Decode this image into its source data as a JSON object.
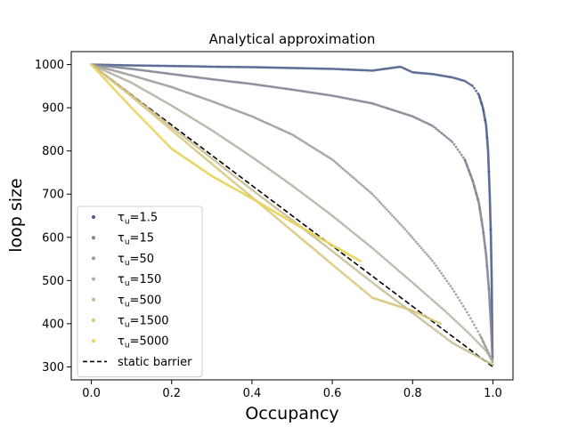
{
  "chart_data": {
    "type": "scatter",
    "title": "Analytical approximation",
    "xlabel": "Occupancy",
    "ylabel": "loop size",
    "xlim": [
      -0.05,
      1.05
    ],
    "ylim": [
      270,
      1030
    ],
    "xticks": [
      0.0,
      0.2,
      0.4,
      0.6,
      0.8,
      1.0
    ],
    "xtick_labels": [
      "0.0",
      "0.2",
      "0.4",
      "0.6",
      "0.8",
      "1.0"
    ],
    "yticks": [
      300,
      400,
      500,
      600,
      700,
      800,
      900,
      1000
    ],
    "ytick_labels": [
      "300",
      "400",
      "500",
      "600",
      "700",
      "800",
      "900",
      "1000"
    ],
    "grid": false,
    "legend_position": "lower-left",
    "series": [
      {
        "name": "τu=1.5",
        "label_base": "τ",
        "label_sub": "u",
        "label_rest": "=1.5",
        "color": "#4a5a8a",
        "points": [
          [
            0.0,
            1000
          ],
          [
            0.05,
            999
          ],
          [
            0.1,
            998
          ],
          [
            0.18,
            997
          ],
          [
            0.25,
            996
          ],
          [
            0.3,
            995
          ],
          [
            0.4,
            994
          ],
          [
            0.5,
            992
          ],
          [
            0.6,
            990
          ],
          [
            0.7,
            986
          ],
          [
            0.77,
            995
          ],
          [
            0.8,
            982
          ],
          [
            0.85,
            978
          ],
          [
            0.9,
            970
          ],
          [
            0.93,
            962
          ],
          [
            0.95,
            950
          ],
          [
            0.965,
            930
          ],
          [
            0.975,
            900
          ],
          [
            0.983,
            860
          ],
          [
            0.988,
            800
          ],
          [
            0.992,
            700
          ],
          [
            0.995,
            600
          ],
          [
            0.997,
            500
          ],
          [
            0.998,
            400
          ],
          [
            0.999,
            320
          ]
        ]
      },
      {
        "name": "τu=15",
        "label_base": "τ",
        "label_sub": "u",
        "label_rest": "=15",
        "color": "#7f8190",
        "points": [
          [
            0.0,
            1000
          ],
          [
            0.1,
            990
          ],
          [
            0.2,
            978
          ],
          [
            0.3,
            966
          ],
          [
            0.4,
            955
          ],
          [
            0.5,
            942
          ],
          [
            0.6,
            928
          ],
          [
            0.7,
            910
          ],
          [
            0.8,
            880
          ],
          [
            0.85,
            858
          ],
          [
            0.9,
            820
          ],
          [
            0.93,
            780
          ],
          [
            0.95,
            730
          ],
          [
            0.965,
            680
          ],
          [
            0.975,
            620
          ],
          [
            0.983,
            560
          ],
          [
            0.99,
            480
          ],
          [
            0.995,
            400
          ],
          [
            0.999,
            320
          ]
        ]
      },
      {
        "name": "τu=50",
        "label_base": "τ",
        "label_sub": "u",
        "label_rest": "=50",
        "color": "#9a9a98",
        "points": [
          [
            0.0,
            1000
          ],
          [
            0.1,
            975
          ],
          [
            0.2,
            948
          ],
          [
            0.3,
            915
          ],
          [
            0.4,
            880
          ],
          [
            0.5,
            838
          ],
          [
            0.6,
            780
          ],
          [
            0.7,
            700
          ],
          [
            0.78,
            620
          ],
          [
            0.85,
            545
          ],
          [
            0.9,
            480
          ],
          [
            0.94,
            420
          ],
          [
            0.97,
            370
          ],
          [
            0.99,
            330
          ],
          [
            0.999,
            312
          ]
        ]
      },
      {
        "name": "τu=150",
        "label_base": "τ",
        "label_sub": "u",
        "label_rest": "=150",
        "color": "#b0ad9c",
        "points": [
          [
            0.0,
            1000
          ],
          [
            0.1,
            958
          ],
          [
            0.2,
            905
          ],
          [
            0.3,
            848
          ],
          [
            0.4,
            786
          ],
          [
            0.5,
            720
          ],
          [
            0.6,
            650
          ],
          [
            0.7,
            575
          ],
          [
            0.8,
            495
          ],
          [
            0.88,
            430
          ],
          [
            0.94,
            378
          ],
          [
            0.98,
            340
          ],
          [
            0.999,
            315
          ]
        ]
      },
      {
        "name": "τu=500",
        "label_base": "τ",
        "label_sub": "u",
        "label_rest": "=500",
        "color": "#c4b98c",
        "points": [
          [
            0.0,
            1000
          ],
          [
            0.1,
            930
          ],
          [
            0.2,
            855
          ],
          [
            0.3,
            783
          ],
          [
            0.4,
            710
          ],
          [
            0.5,
            640
          ],
          [
            0.6,
            568
          ],
          [
            0.7,
            495
          ],
          [
            0.8,
            425
          ],
          [
            0.9,
            355
          ],
          [
            0.97,
            320
          ],
          [
            1.0,
            305
          ]
        ]
      },
      {
        "name": "τu=1500",
        "label_base": "τ",
        "label_sub": "u",
        "label_rest": "=1500",
        "color": "#d6c679",
        "points": [
          [
            0.0,
            1000
          ],
          [
            0.1,
            926
          ],
          [
            0.2,
            848
          ],
          [
            0.3,
            770
          ],
          [
            0.4,
            693
          ],
          [
            0.5,
            615
          ],
          [
            0.6,
            537
          ],
          [
            0.7,
            460
          ],
          [
            0.8,
            430
          ],
          [
            0.87,
            400
          ]
        ]
      },
      {
        "name": "τu=5000",
        "label_base": "τ",
        "label_sub": "u",
        "label_rest": "=5000",
        "color": "#e8d25a",
        "points": [
          [
            0.0,
            1000
          ],
          [
            0.1,
            900
          ],
          [
            0.2,
            805
          ],
          [
            0.3,
            742
          ],
          [
            0.4,
            690
          ],
          [
            0.5,
            635
          ],
          [
            0.6,
            582
          ],
          [
            0.67,
            545
          ]
        ]
      }
    ],
    "reference_line": {
      "name": "static barrier",
      "color": "#000000",
      "points": [
        [
          0.0,
          1000
        ],
        [
          1.0,
          300
        ]
      ]
    }
  }
}
